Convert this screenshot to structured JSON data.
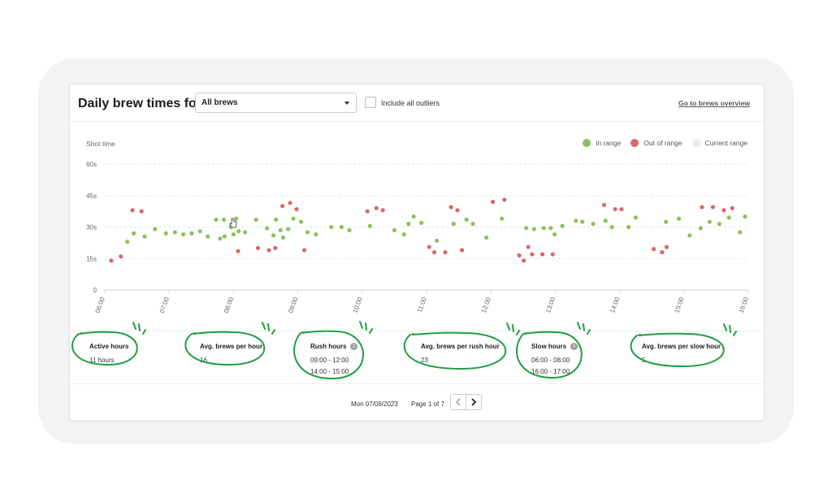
{
  "header": {
    "title": "Daily brew times for",
    "select_value": "All brews",
    "checkbox_label": "Include all outliers",
    "overview_link": "Go to brews overview"
  },
  "chart": {
    "ylabel": "Shot time",
    "legend": [
      {
        "label": "In range",
        "color": "#8dc05e"
      },
      {
        "label": "Out of range",
        "color": "#d9676a"
      },
      {
        "label": "Current range",
        "color": "#e9ebee"
      }
    ]
  },
  "chart_data": {
    "type": "scatter",
    "title": "",
    "ylabel": "Shot time",
    "xlabel": "",
    "ylim": [
      0,
      60
    ],
    "yticks": [
      "0",
      "15s",
      "30s",
      "45s",
      "60s"
    ],
    "xlim": [
      6,
      16
    ],
    "xticks": [
      "06:00",
      "07:00",
      "08:00",
      "09:00",
      "10:00",
      "11:00",
      "12:00",
      "13:00",
      "14:00",
      "15:00",
      "16:00"
    ],
    "grid": true,
    "legend_position": "top-right",
    "series": [
      {
        "name": "In range",
        "color": "#8dc05e",
        "x": [
          6.35,
          6.45,
          6.62,
          6.78,
          6.95,
          7.09,
          7.22,
          7.35,
          7.48,
          7.6,
          7.73,
          7.79,
          7.86,
          8.01,
          8.08,
          7.85,
          7.96,
          8.0,
          8.04,
          8.18,
          8.35,
          8.52,
          8.62,
          8.66,
          8.73,
          8.77,
          8.85,
          8.93,
          9.05,
          9.15,
          9.28,
          9.52,
          9.68,
          9.8,
          10.12,
          10.5,
          10.65,
          10.72,
          10.8,
          10.92,
          11.16,
          11.42,
          11.62,
          11.72,
          11.93,
          12.17,
          12.55,
          12.67,
          12.82,
          12.93,
          12.99,
          13.11,
          13.32,
          13.42,
          13.59,
          13.78,
          13.88,
          14.14,
          14.25,
          14.72,
          14.92,
          15.09,
          15.26,
          15.4,
          15.55,
          15.7,
          15.87,
          15.95
        ],
        "y": [
          23,
          27,
          25.5,
          29,
          27,
          27.5,
          26.5,
          27,
          28,
          25.5,
          33.5,
          24.5,
          25.5,
          31,
          28,
          33.5,
          30,
          26.5,
          34,
          27.5,
          33.5,
          29.5,
          26,
          33.5,
          28.5,
          25,
          29,
          34,
          32.5,
          27.5,
          26.5,
          30,
          30,
          28.5,
          30.5,
          28.5,
          26.5,
          31.5,
          35,
          32,
          23.5,
          31.5,
          33.5,
          31.5,
          25,
          34,
          29.5,
          29,
          29.5,
          29.5,
          26.5,
          30.5,
          33,
          32.5,
          31.5,
          33,
          30,
          30,
          34.5,
          32.5,
          34,
          26,
          29.5,
          32.5,
          31.5,
          34.5,
          27.5,
          35
        ]
      },
      {
        "name": "Out of range",
        "color": "#d9676a",
        "x": [
          6.1,
          6.25,
          6.43,
          6.57,
          8.07,
          8.38,
          8.55,
          8.65,
          8.76,
          8.88,
          8.98,
          9.1,
          10.08,
          10.22,
          10.32,
          11.04,
          11.12,
          11.29,
          11.38,
          11.55,
          11.48,
          12.03,
          12.21,
          12.44,
          12.51,
          12.58,
          12.64,
          12.8,
          12.96,
          13.76,
          13.93,
          14.03,
          14.53,
          14.66,
          14.73,
          15.28,
          15.45,
          15.62,
          15.75
        ],
        "y": [
          14,
          16,
          38,
          37.5,
          18.5,
          20,
          19,
          20,
          40,
          41.5,
          38.5,
          19,
          37.5,
          39,
          38,
          20.5,
          18,
          18,
          39.5,
          19,
          38,
          42,
          43,
          16.5,
          14,
          20.5,
          17,
          17,
          17,
          40.5,
          38.5,
          38.5,
          19.5,
          18,
          20.5,
          39.5,
          39.5,
          38,
          39
        ]
      }
    ]
  },
  "stats": [
    {
      "label": "Active hours",
      "values": [
        "11 hours"
      ],
      "info": false
    },
    {
      "label": "Avg. brews per hour",
      "values": [
        "16"
      ],
      "info": false
    },
    {
      "label": "Rush hours",
      "values": [
        "09:00 - 12:00",
        "14:00 - 15:00"
      ],
      "info": true
    },
    {
      "label": "Avg. brews per rush hour",
      "values": [
        "23"
      ],
      "info": false
    },
    {
      "label": "Slow hours",
      "values": [
        "06:00 - 08:00",
        "16:00 - 17:00"
      ],
      "info": true
    },
    {
      "label": "Avg. brews per slow hour",
      "values": [
        "5"
      ],
      "info": false
    }
  ],
  "footer": {
    "date": "Mon 07/08/2023",
    "page": "Page 1 of 7"
  },
  "icons": {
    "info": "info-icon",
    "prev": "chevron-left-icon",
    "next": "chevron-right-icon",
    "dropdown": "caret-down-icon",
    "cursor": "pointer-cursor-icon"
  },
  "annotation_color": "#1f9e3f"
}
